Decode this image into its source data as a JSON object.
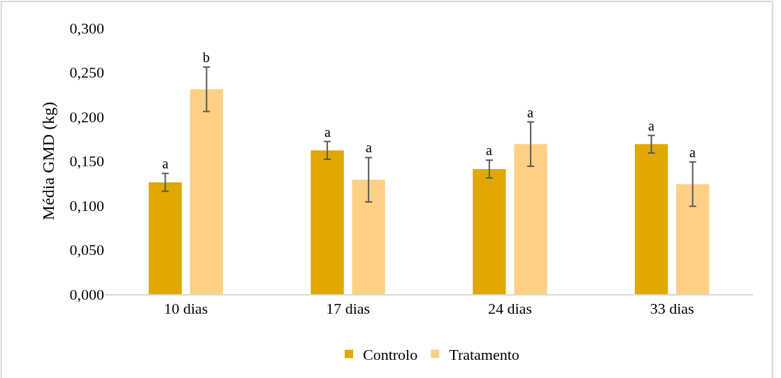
{
  "chart_data": {
    "type": "bar",
    "ylabel": "Média GMD (kg)",
    "categories": [
      "10 dias",
      "17 dias",
      "24 dias",
      "33 dias"
    ],
    "series": [
      {
        "name": "Controlo",
        "color": "#e0a800",
        "values": [
          0.126,
          0.162,
          0.141,
          0.169
        ],
        "errors": [
          0.01,
          0.01,
          0.01,
          0.01
        ]
      },
      {
        "name": "Tratamento",
        "color": "#fdd086",
        "values": [
          0.231,
          0.129,
          0.169,
          0.124
        ],
        "errors": [
          0.025,
          0.025,
          0.025,
          0.025
        ]
      }
    ],
    "ylim": [
      0,
      0.3
    ],
    "yticks": [
      {
        "value": 0,
        "label": "0,000"
      },
      {
        "value": 0.05,
        "label": "0,050"
      },
      {
        "value": 0.1,
        "label": "0,100"
      },
      {
        "value": 0.15,
        "label": "0,150"
      },
      {
        "value": 0.2,
        "label": "0,200"
      },
      {
        "value": 0.25,
        "label": "0,250"
      },
      {
        "value": 0.3,
        "label": "0,300"
      }
    ],
    "annotations": [
      "a",
      "b",
      "a",
      "a",
      "a",
      "a",
      "a",
      "a"
    ],
    "grid": false,
    "legend": "bottom"
  }
}
